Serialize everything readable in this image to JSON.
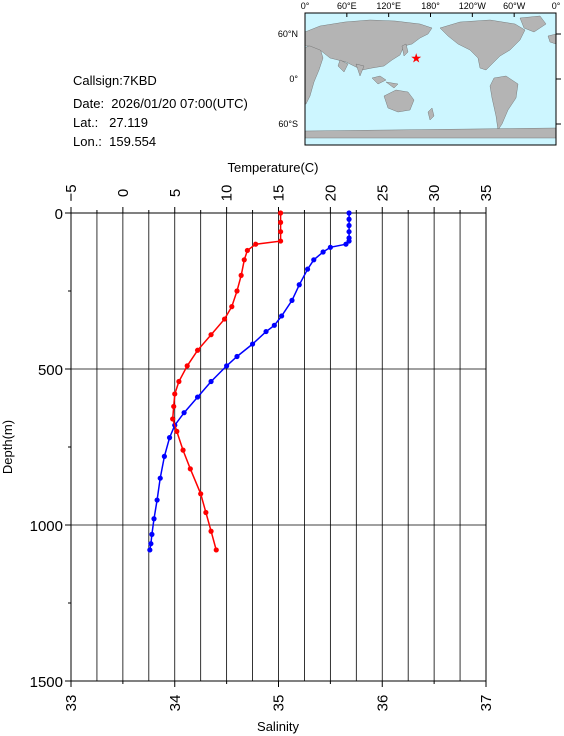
{
  "station": {
    "callsign": "Callsign:7KBD",
    "date": "Date:  2026/01/20 07:00(UTC)",
    "lat": "Lat.:   27.119",
    "lon": "Lon.:  159.554"
  },
  "map": {
    "lon_labels": [
      "0°",
      "60°E",
      "120°E",
      "180°",
      "120°W",
      "60°W",
      "0°"
    ],
    "lat_labels": [
      "60°N",
      "0°",
      "60°S"
    ],
    "marker": {
      "lat": 27.119,
      "lon": 159.554,
      "symbol": "★"
    },
    "colors": {
      "ocean": "#cdf6ff",
      "land": "#b4b4b4",
      "marker": "#ff0000"
    }
  },
  "chart_data": {
    "type": "line",
    "title": "",
    "top_axis": {
      "label": "Temperature(C)",
      "range": [
        -5,
        35
      ],
      "ticks": [
        "−5",
        "0",
        "5",
        "10",
        "15",
        "20",
        "25",
        "30",
        "35"
      ]
    },
    "bottom_axis": {
      "label": "Salinity",
      "range": [
        33,
        37
      ],
      "ticks": [
        "33",
        "34",
        "35",
        "36",
        "37"
      ]
    },
    "y_axis": {
      "label": "Depth(m)",
      "range": [
        0,
        1500
      ],
      "ticks": [
        "0",
        "500",
        "1000",
        "1500"
      ],
      "inverted": true
    },
    "grid": true,
    "series": [
      {
        "variable": "temperature",
        "axis": "top",
        "color": "#0000ff",
        "points": [
          [
            21.8,
            0
          ],
          [
            21.8,
            20
          ],
          [
            21.8,
            40
          ],
          [
            21.8,
            60
          ],
          [
            21.8,
            80
          ],
          [
            21.8,
            90
          ],
          [
            21.5,
            100
          ],
          [
            20.0,
            110
          ],
          [
            19.3,
            125
          ],
          [
            18.4,
            150
          ],
          [
            17.8,
            180
          ],
          [
            17.0,
            230
          ],
          [
            16.3,
            280
          ],
          [
            15.3,
            330
          ],
          [
            14.6,
            360
          ],
          [
            13.8,
            380
          ],
          [
            12.5,
            420
          ],
          [
            11.0,
            460
          ],
          [
            10.0,
            490
          ],
          [
            8.5,
            540
          ],
          [
            7.2,
            590
          ],
          [
            5.9,
            640
          ],
          [
            5.0,
            680
          ],
          [
            4.5,
            720
          ],
          [
            4.0,
            780
          ],
          [
            3.6,
            850
          ],
          [
            3.3,
            920
          ],
          [
            3.0,
            980
          ],
          [
            2.8,
            1030
          ],
          [
            2.7,
            1060
          ],
          [
            2.6,
            1080
          ]
        ]
      },
      {
        "variable": "salinity",
        "axis": "bottom",
        "color": "#ff0000",
        "points": [
          [
            35.02,
            0
          ],
          [
            35.02,
            30
          ],
          [
            35.02,
            60
          ],
          [
            35.02,
            90
          ],
          [
            34.78,
            100
          ],
          [
            34.7,
            120
          ],
          [
            34.67,
            150
          ],
          [
            34.64,
            200
          ],
          [
            34.6,
            250
          ],
          [
            34.55,
            300
          ],
          [
            34.48,
            340
          ],
          [
            34.35,
            390
          ],
          [
            34.22,
            440
          ],
          [
            34.12,
            490
          ],
          [
            34.04,
            540
          ],
          [
            34.0,
            580
          ],
          [
            33.99,
            620
          ],
          [
            33.98,
            660
          ],
          [
            34.02,
            700
          ],
          [
            34.08,
            760
          ],
          [
            34.15,
            820
          ],
          [
            34.25,
            900
          ],
          [
            34.3,
            960
          ],
          [
            34.35,
            1020
          ],
          [
            34.4,
            1080
          ]
        ]
      }
    ]
  }
}
